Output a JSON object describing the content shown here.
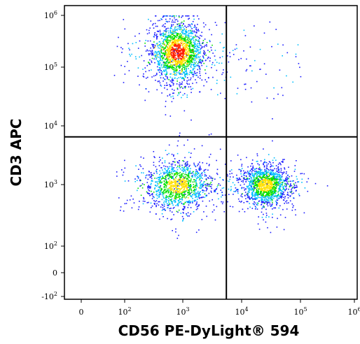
{
  "chart_data": {
    "type": "scatter",
    "title": "",
    "xlabel": "CD56 PE-DyLight® 594",
    "ylabel": "CD3 APC",
    "x_scale": "biexponential",
    "y_scale": "biexponential",
    "x_ticks": [
      {
        "value": 0,
        "base": "0",
        "exp": ""
      },
      {
        "value": 100,
        "base": "10",
        "exp": "2"
      },
      {
        "value": 1000,
        "base": "10",
        "exp": "3"
      },
      {
        "value": 10000,
        "base": "10",
        "exp": "4"
      },
      {
        "value": 100000,
        "base": "10",
        "exp": "5"
      },
      {
        "value": 1000000,
        "base": "10",
        "exp": "6"
      }
    ],
    "y_ticks": [
      {
        "value": -100,
        "base": "-10",
        "exp": "2"
      },
      {
        "value": 0,
        "base": "0",
        "exp": ""
      },
      {
        "value": 100,
        "base": "10",
        "exp": "2"
      },
      {
        "value": 1000,
        "base": "10",
        "exp": "3"
      },
      {
        "value": 10000,
        "base": "10",
        "exp": "4"
      },
      {
        "value": 100000,
        "base": "10",
        "exp": "5"
      },
      {
        "value": 1000000,
        "base": "10",
        "exp": "6"
      }
    ],
    "quadrant_gates": {
      "x": 5500,
      "y": 6500
    },
    "populations": [
      {
        "name_visible": false,
        "center_x": 800,
        "center_y": 200000,
        "spread_x_decades": 0.22,
        "spread_y_decades": 0.28,
        "count": 1800,
        "peak_density": "high"
      },
      {
        "name_visible": false,
        "center_x": 800,
        "center_y": 1000,
        "spread_x_decades": 0.28,
        "spread_y_decades": 0.2,
        "count": 1200,
        "peak_density": "medium"
      },
      {
        "name_visible": false,
        "center_x": 25000,
        "center_y": 1000,
        "spread_x_decades": 0.2,
        "spread_y_decades": 0.16,
        "count": 1300,
        "peak_density": "medium"
      }
    ],
    "colormap": [
      "#1a1aff",
      "#00bfff",
      "#00e000",
      "#ffe000",
      "#ff2000"
    ],
    "grid": false,
    "legend": "none"
  }
}
